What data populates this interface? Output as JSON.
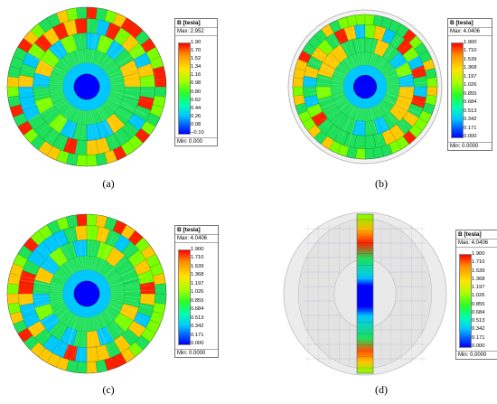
{
  "panels": [
    {
      "id": "a",
      "caption": "(a)",
      "legend": {
        "title": "B [tesla]",
        "max": "Max: 2.952",
        "min": "Min: 0.000",
        "ticks": [
          "1.90",
          "1.70",
          "1.52",
          "1.34",
          "1.16",
          "0.98",
          "0.80",
          "0.62",
          "0.44",
          "0.26",
          "0.08",
          "−0.10"
        ]
      }
    },
    {
      "id": "b",
      "caption": "(b)",
      "legend": {
        "title": "B [tesla]",
        "max": "Max: 4.0406",
        "min": "Min: 0.0000",
        "ticks": [
          "1.900",
          "1.710",
          "1.539",
          "1.368",
          "1.197",
          "1.026",
          "0.855",
          "0.684",
          "0.513",
          "0.342",
          "0.171",
          "0.000"
        ]
      }
    },
    {
      "id": "c",
      "caption": "(c)",
      "legend": {
        "title": "B [tesla]",
        "max": "Max: 4.0406",
        "min": "Min: 0.0000",
        "ticks": [
          "1.900",
          "1.710",
          "1.539",
          "1.368",
          "1.197",
          "1.026",
          "0.855",
          "0.684",
          "0.513",
          "0.342",
          "0.171",
          "0.000"
        ]
      }
    },
    {
      "id": "d",
      "caption": "(d)",
      "legend": {
        "title": "B [tesla]",
        "max": "Max: 4.0406",
        "min": "Min: 0.0000",
        "ticks": [
          "1.900",
          "1.710",
          "1.539",
          "1.368",
          "1.197",
          "1.026",
          "0.855",
          "0.684",
          "0.513",
          "0.342",
          "0.171",
          "0.000"
        ]
      }
    }
  ],
  "colors": {
    "high": "#ff2000",
    "upper": "#ffc800",
    "mid": "#7cff00",
    "green": "#1ee05a",
    "low": "#00c8ff",
    "core": "#0000ff"
  }
}
